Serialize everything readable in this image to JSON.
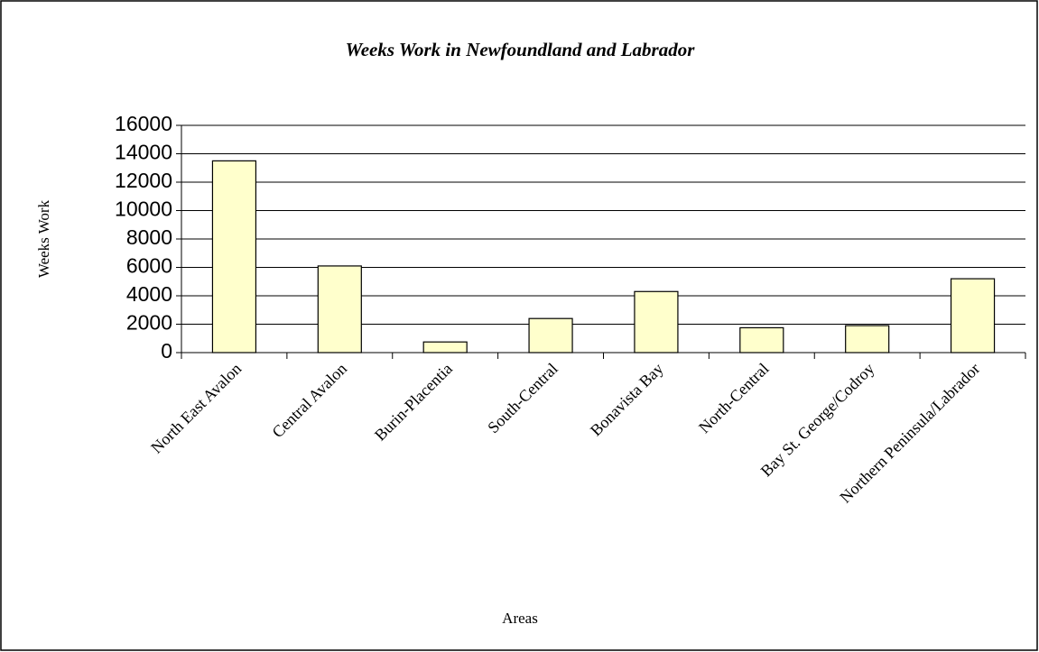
{
  "chart_data": {
    "type": "bar",
    "title": "Weeks Work in Newfoundland and Labrador",
    "x_label": "Areas",
    "y_label": "Weeks Work",
    "categories": [
      "North East Avalon",
      "Central Avalon",
      "Burin-Placentia",
      "South-Central",
      "Bonavista Bay",
      "North-Central",
      "Bay St. George/Codroy",
      "Northern Peninsula/Labrador"
    ],
    "values": [
      13500,
      6100,
      750,
      2400,
      4300,
      1750,
      1900,
      5200
    ],
    "color": "#ffffcc",
    "ylim": [
      0,
      16000
    ],
    "yticks": [
      0,
      2000,
      4000,
      6000,
      8000,
      10000,
      12000,
      14000,
      16000
    ],
    "grid": true
  }
}
